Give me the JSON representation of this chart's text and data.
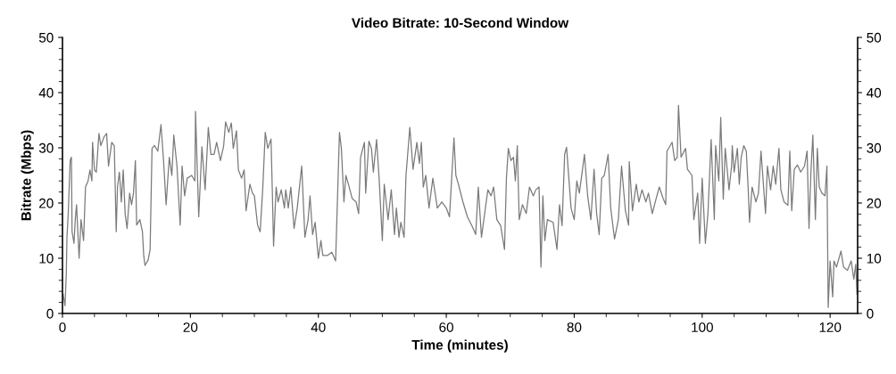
{
  "chart_data": {
    "type": "line",
    "title": "Video Bitrate: 10-Second Window",
    "xlabel": "Time (minutes)",
    "ylabel": "Bitrate (Mbps)",
    "series": [
      {
        "color": "#7a7a7a",
        "axis": "y",
        "x": [
          0.1,
          0.4,
          0.6,
          0.7,
          0.9,
          1.2,
          1.4,
          1.5,
          1.8,
          2.0,
          2.2,
          2.6,
          2.9,
          3.3,
          3.6,
          4.0,
          4.3,
          4.6,
          4.7,
          5.0,
          5.3,
          5.7,
          6.0,
          6.5,
          6.9,
          7.2,
          7.7,
          8.1,
          8.4,
          8.6,
          8.9,
          9.2,
          9.5,
          9.8,
          10.1,
          10.5,
          10.8,
          11.1,
          11.4,
          11.6,
          12.1,
          12.5,
          12.7,
          12.9,
          13.4,
          13.7,
          14.0,
          14.4,
          14.9,
          15.4,
          15.8,
          16.2,
          16.7,
          17.1,
          17.4,
          17.9,
          18.4,
          18.7,
          19.1,
          19.5,
          20.2,
          20.7,
          20.8,
          21.3,
          21.8,
          22.3,
          22.8,
          23.2,
          23.7,
          24.1,
          24.7,
          25.2,
          25.5,
          26.0,
          26.4,
          26.7,
          27.2,
          27.5,
          28.0,
          28.4,
          28.7,
          29.3,
          29.7,
          30.0,
          30.5,
          30.9,
          31.3,
          31.7,
          32.1,
          32.6,
          32.8,
          33.0,
          33.4,
          33.7,
          34.2,
          34.7,
          34.9,
          35.3,
          35.7,
          36.2,
          36.7,
          37.4,
          37.9,
          38.4,
          38.7,
          39.1,
          39.5,
          40.0,
          40.4,
          40.7,
          41.4,
          42.1,
          42.7,
          43.3,
          43.6,
          44.0,
          44.3,
          44.7,
          45.3,
          45.9,
          46.3,
          46.6,
          47.2,
          47.4,
          47.9,
          48.3,
          48.6,
          49.1,
          49.5,
          50.0,
          50.3,
          50.9,
          51.4,
          51.9,
          52.2,
          52.6,
          52.9,
          53.4,
          53.7,
          54.3,
          54.8,
          55.4,
          55.8,
          56.1,
          56.4,
          56.8,
          57.3,
          57.9,
          58.6,
          59.3,
          60.0,
          60.5,
          61.2,
          61.5,
          61.9,
          62.6,
          63.3,
          64.0,
          64.6,
          65.0,
          65.5,
          66.0,
          66.5,
          67.0,
          67.4,
          67.9,
          68.5,
          69.1,
          69.4,
          69.7,
          70.1,
          70.5,
          70.8,
          71.1,
          71.4,
          71.9,
          72.5,
          73.0,
          73.6,
          74.0,
          74.5,
          74.8,
          75.1,
          75.4,
          75.8,
          76.7,
          77.3,
          77.7,
          78.1,
          78.5,
          78.8,
          79.5,
          80.0,
          80.4,
          80.8,
          81.6,
          82.1,
          82.6,
          83.1,
          83.5,
          83.9,
          84.3,
          84.7,
          85.3,
          85.7,
          86.3,
          86.9,
          87.4,
          88.0,
          88.5,
          88.6,
          89.1,
          89.7,
          90.1,
          90.6,
          91.2,
          91.6,
          92.2,
          92.8,
          93.3,
          93.9,
          94.3,
          94.5,
          95.3,
          95.7,
          96.1,
          96.3,
          96.7,
          97.4,
          97.7,
          98.4,
          98.7,
          99.3,
          99.6,
          100.0,
          100.5,
          100.9,
          101.4,
          101.9,
          102.1,
          102.6,
          102.9,
          103.3,
          103.6,
          104.2,
          104.6,
          104.7,
          105.0,
          105.5,
          105.8,
          106.1,
          106.5,
          106.9,
          107.2,
          107.4,
          107.8,
          108.4,
          108.8,
          109.2,
          109.5,
          109.9,
          110.2,
          110.7,
          111.1,
          111.5,
          112.0,
          112.3,
          112.8,
          113.4,
          113.7,
          114.0,
          114.4,
          114.9,
          115.4,
          116.0,
          116.4,
          116.7,
          117.0,
          117.3,
          117.7,
          118.0,
          118.3,
          118.7,
          119.2,
          119.5,
          119.7,
          120.0,
          120.4,
          120.6,
          121.0,
          121.7,
          122.1,
          122.7,
          123.3,
          123.7,
          124.0,
          124.2
        ],
        "values": [
          3.5,
          1.4,
          7.3,
          13.8,
          18,
          27.7,
          28.3,
          14.8,
          12.7,
          17,
          19.7,
          10,
          17,
          13.2,
          22.9,
          24,
          26,
          24,
          31,
          26,
          25.6,
          32.6,
          30.4,
          32,
          32.6,
          26.7,
          31,
          30.4,
          14.8,
          22.9,
          25.6,
          20.2,
          26,
          18,
          15.4,
          21.8,
          19.7,
          21.8,
          27.7,
          16,
          17,
          14.8,
          10.5,
          8.7,
          9.7,
          11.6,
          29.9,
          30.4,
          29.4,
          34.2,
          27.7,
          19.7,
          28.3,
          25,
          32.3,
          26.7,
          16,
          26.7,
          21.3,
          24.5,
          25,
          24,
          36.6,
          17.5,
          30.2,
          22.4,
          33.7,
          28.8,
          28.8,
          31,
          27.7,
          30.4,
          34.7,
          32.8,
          34.5,
          29.9,
          33.1,
          26,
          24.5,
          26,
          18.6,
          23.4,
          21.8,
          21.3,
          16,
          14.8,
          22.4,
          32.8,
          29.9,
          31.6,
          22.4,
          12.2,
          22.9,
          20.2,
          22.4,
          19.1,
          22.4,
          19.1,
          22.9,
          15.4,
          19.1,
          26.7,
          13.8,
          17,
          21.3,
          14.3,
          16.5,
          10,
          13.2,
          10.5,
          10.5,
          11.1,
          9.5,
          32.8,
          29.9,
          20.2,
          25,
          23.4,
          20.8,
          20.2,
          18.1,
          28.3,
          31,
          21.8,
          31.2,
          29.9,
          25.6,
          31.5,
          24.5,
          13.2,
          23.4,
          17,
          22.4,
          14.3,
          19.1,
          13.8,
          16.5,
          13.8,
          25,
          33.7,
          26.1,
          31,
          27.2,
          31,
          22.9,
          25,
          19.1,
          24.5,
          19.1,
          20.2,
          19.1,
          17.5,
          31.8,
          25,
          23.4,
          20.2,
          17.5,
          15.9,
          14.3,
          22.9,
          13.8,
          18.1,
          22.4,
          21.3,
          22.9,
          17,
          15.9,
          11.6,
          24.5,
          29.9,
          27.7,
          28.3,
          24,
          30.4,
          17,
          19.7,
          18.1,
          22.9,
          21.3,
          22.4,
          22.9,
          8.4,
          21.3,
          13.2,
          17,
          16.5,
          11.6,
          19.7,
          15.9,
          28.8,
          30.1,
          19.1,
          17,
          24,
          21.8,
          28.8,
          21.3,
          17,
          26.1,
          18.1,
          14.3,
          24.5,
          25,
          28.8,
          19.1,
          13.5,
          17,
          26.7,
          18.6,
          16,
          27.5,
          18.6,
          23.4,
          20.2,
          22.4,
          20.2,
          21.8,
          18.1,
          20.8,
          22.9,
          20.8,
          19.7,
          29.4,
          31,
          27.7,
          28.3,
          37.7,
          28.3,
          29.9,
          26.1,
          25,
          17,
          21.8,
          12.7,
          24.5,
          12.7,
          18.1,
          31.5,
          17,
          30.4,
          24,
          35.5,
          20.7,
          29.9,
          22.4,
          26.7,
          30.4,
          25.6,
          29.9,
          23.4,
          28.3,
          30.4,
          29.4,
          22.4,
          16.5,
          22.9,
          20.2,
          21.8,
          29.4,
          24.5,
          18.1,
          26.7,
          22.4,
          26.7,
          23.4,
          29.9,
          22.4,
          20.2,
          19.6,
          29.4,
          18.6,
          26.1,
          26.9,
          25.6,
          26.7,
          29.4,
          15.4,
          25.6,
          32.3,
          17,
          29.9,
          22.9,
          21.8,
          21.3,
          26.7,
          1.1,
          9.5,
          3,
          9.5,
          8.4,
          11.3,
          8.4,
          7.8,
          9.5,
          6.2,
          8.9,
          3.5
        ]
      }
    ],
    "xlim": [
      0,
      124.3
    ],
    "xticks": [
      0,
      20,
      40,
      60,
      80,
      100,
      120
    ],
    "ylim": [
      0,
      50
    ],
    "yticks": [
      0,
      10,
      20,
      30,
      40,
      50
    ],
    "y2lim": [
      0,
      50
    ],
    "y2ticks": [
      0,
      10,
      20,
      30,
      40,
      50
    ],
    "grid": false,
    "legend": false,
    "marker": "none",
    "line_style": "solid"
  }
}
